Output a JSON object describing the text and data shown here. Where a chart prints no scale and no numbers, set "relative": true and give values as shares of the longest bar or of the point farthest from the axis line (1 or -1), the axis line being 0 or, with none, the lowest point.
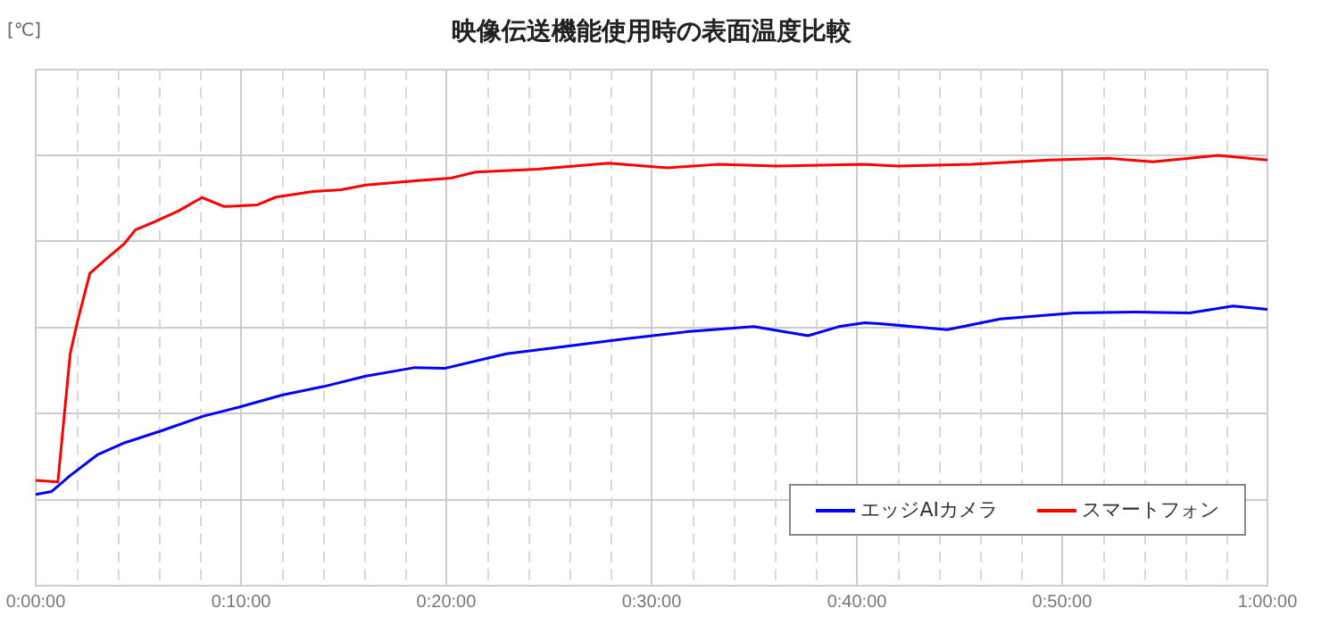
{
  "chart_data": {
    "type": "line",
    "title": "映像伝送機能使用時の表面温度比較",
    "annotations": [
      "[℃]"
    ],
    "relative": true,
    "grid": true,
    "legend": "bottom right",
    "marker": "none",
    "line_style": "solid",
    "xlim": [
      0,
      1
    ],
    "xticks": [
      {
        "value": 0,
        "label": "0:00:00"
      },
      {
        "value": 0.0333,
        "label": null
      },
      {
        "value": 0.0667,
        "label": null
      },
      {
        "value": 0.1,
        "label": null
      },
      {
        "value": 0.1333,
        "label": null
      },
      {
        "value": 0.1667,
        "label": "0:10:00"
      },
      {
        "value": 0.2,
        "label": null
      },
      {
        "value": 0.2333,
        "label": null
      },
      {
        "value": 0.2667,
        "label": null
      },
      {
        "value": 0.3,
        "label": null
      },
      {
        "value": 0.3333,
        "label": "0:20:00"
      },
      {
        "value": 0.3667,
        "label": null
      },
      {
        "value": 0.4,
        "label": null
      },
      {
        "value": 0.4333,
        "label": null
      },
      {
        "value": 0.4667,
        "label": null
      },
      {
        "value": 0.5,
        "label": "0:30:00"
      },
      {
        "value": 0.5333,
        "label": null
      },
      {
        "value": 0.5667,
        "label": null
      },
      {
        "value": 0.6,
        "label": null
      },
      {
        "value": 0.6333,
        "label": null
      },
      {
        "value": 0.6667,
        "label": "0:40:00"
      },
      {
        "value": 0.7,
        "label": null
      },
      {
        "value": 0.7333,
        "label": null
      },
      {
        "value": 0.7667,
        "label": null
      },
      {
        "value": 0.8,
        "label": null
      },
      {
        "value": 0.8333,
        "label": "0:50:00"
      },
      {
        "value": 0.8667,
        "label": null
      },
      {
        "value": 0.9,
        "label": null
      },
      {
        "value": 0.9333,
        "label": null
      },
      {
        "value": 0.9667,
        "label": null
      },
      {
        "value": 1,
        "label": "1:00:00"
      }
    ],
    "series": [
      {
        "name": "エッジAIカメラ",
        "color": "#0000ff",
        "x": [
          0,
          0.013,
          0.028,
          0.05,
          0.072,
          0.102,
          0.136,
          0.165,
          0.2,
          0.234,
          0.268,
          0.308,
          0.332,
          0.382,
          0.43,
          0.48,
          0.528,
          0.583,
          0.627,
          0.652,
          0.673,
          0.685,
          0.74,
          0.783,
          0.843,
          0.892,
          0.937,
          0.972,
          1
        ],
        "values": [
          0.212,
          0.219,
          0.256,
          0.304,
          0.332,
          0.36,
          0.394,
          0.415,
          0.443,
          0.463,
          0.487,
          0.507,
          0.505,
          0.539,
          0.556,
          0.574,
          0.59,
          0.602,
          0.581,
          0.602,
          0.611,
          0.609,
          0.595,
          0.62,
          0.634,
          0.636,
          0.634,
          0.65,
          0.642
        ]
      },
      {
        "name": "スマートフォン",
        "color": "#ff0000",
        "x": [
          0,
          0.018,
          0.028,
          0.034,
          0.044,
          0.058,
          0.072,
          0.081,
          0.097,
          0.116,
          0.135,
          0.153,
          0.18,
          0.195,
          0.225,
          0.248,
          0.268,
          0.308,
          0.337,
          0.357,
          0.407,
          0.465,
          0.513,
          0.553,
          0.602,
          0.672,
          0.7,
          0.76,
          0.823,
          0.872,
          0.907,
          0.96,
          1
        ],
        "values": [
          0.245,
          0.241,
          0.539,
          0.615,
          0.726,
          0.761,
          0.795,
          0.827,
          0.846,
          0.871,
          0.902,
          0.881,
          0.885,
          0.903,
          0.916,
          0.92,
          0.931,
          0.941,
          0.947,
          0.961,
          0.968,
          0.982,
          0.971,
          0.979,
          0.975,
          0.979,
          0.975,
          0.979,
          0.989,
          0.993,
          0.985,
          1,
          0.989
        ]
      }
    ]
  }
}
